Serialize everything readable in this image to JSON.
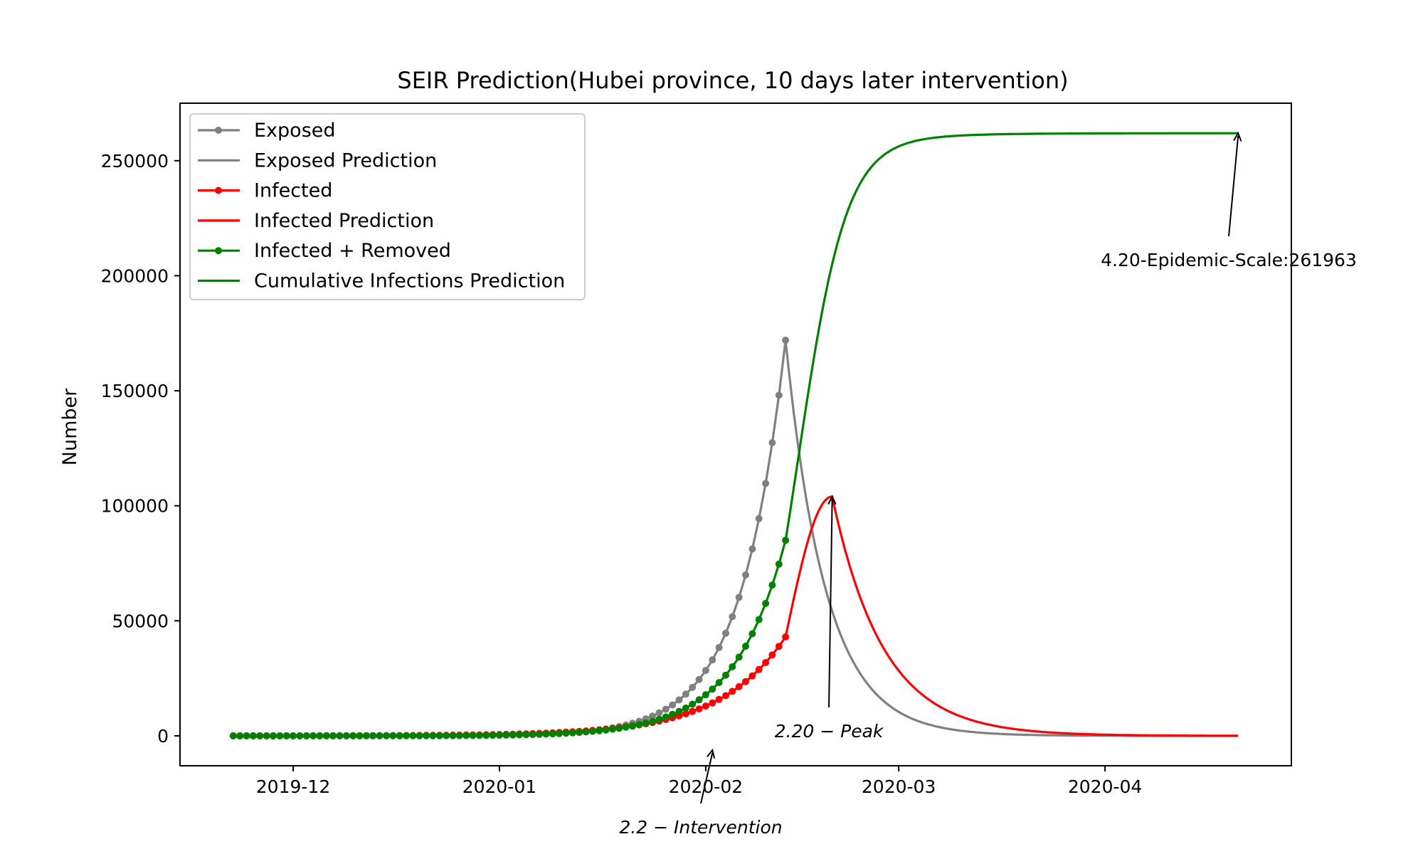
{
  "chart_data": {
    "type": "line",
    "title": "SEIR Prediction(Hubei province, 10 days later intervention)",
    "xlabel": "",
    "ylabel": "Number",
    "x_start": "2019-11-22",
    "x_end_day": 151,
    "observed_end_day": 83,
    "xlim_days": [
      -8,
      159
    ],
    "ylim": [
      -13000,
      275000
    ],
    "xticks": [
      {
        "label": "2019-12",
        "day": 9
      },
      {
        "label": "2020-01",
        "day": 40
      },
      {
        "label": "2020-02",
        "day": 71
      },
      {
        "label": "2020-03",
        "day": 100
      },
      {
        "label": "2020-04",
        "day": 131
      }
    ],
    "yticks": [
      0,
      50000,
      100000,
      150000,
      200000,
      250000
    ],
    "series": [
      {
        "name": "Exposed",
        "color": "#808080",
        "marker": "dot",
        "observed": true,
        "model": {
          "kind": "exp",
          "a": 172000,
          "b": 0.15,
          "end": 83
        }
      },
      {
        "name": "Exposed Prediction",
        "color": "#808080",
        "marker": "none",
        "observed": false,
        "model": {
          "kind": "decay",
          "peak_day": 83,
          "peak": 172000,
          "half_life_days": 4.2
        }
      },
      {
        "name": "Infected",
        "color": "#ff0000",
        "marker": "dot",
        "observed": true,
        "model": {
          "kind": "exp",
          "a": 43000,
          "b": 0.1,
          "end": 83
        }
      },
      {
        "name": "Infected Prediction",
        "color": "#ff0000",
        "marker": "none",
        "observed": false,
        "model": {
          "kind": "peak",
          "start_day": 83,
          "start": 43000,
          "peak_day": 90,
          "peak": 104000,
          "decay_rate": 0.13
        }
      },
      {
        "name": "Infected + Removed",
        "color": "#008000",
        "marker": "dot",
        "observed": true,
        "model": {
          "kind": "exp",
          "a": 85000,
          "b": 0.13,
          "end": 83
        }
      },
      {
        "name": "Cumulative Infections Prediction",
        "color": "#008000",
        "marker": "none",
        "observed": false,
        "model": {
          "kind": "logistic",
          "start_day": 83,
          "start": 85000,
          "final": 261963,
          "rate": 0.28,
          "mid_day": 85
        }
      }
    ],
    "annotations": [
      {
        "text": "4.20-Epidemic-Scale:261963",
        "point_day": 151,
        "point_value": 261963,
        "italic": false
      },
      {
        "text": "2.20 − Peak",
        "point_day": 90,
        "point_value": 104000,
        "italic": true
      },
      {
        "text": "2.2 − Intervention",
        "point_day": 72,
        "point_value": 0,
        "italic": true
      }
    ],
    "legend_position": "upper-left"
  }
}
